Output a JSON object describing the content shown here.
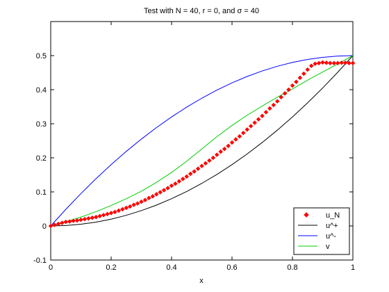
{
  "chart_data": {
    "type": "line",
    "title": "Test with N = 40, r = 0, and σ = 40",
    "xlabel": "x",
    "ylabel": "",
    "xlim": [
      0,
      1
    ],
    "ylim": [
      -0.1,
      0.6
    ],
    "xticks": [
      0,
      0.2,
      0.4,
      0.6,
      0.8,
      1
    ],
    "xtick_labels": [
      "0",
      "0.2",
      "0.4",
      "0.6",
      "0.8",
      "1"
    ],
    "yticks": [
      -0.1,
      0,
      0.1,
      0.2,
      0.3,
      0.4,
      0.5
    ],
    "ytick_labels": [
      "-0.1",
      "0",
      "0.1",
      "0.2",
      "0.3",
      "0.4",
      "0.5"
    ],
    "grid": false,
    "legend_position": "bottom-right",
    "series": [
      {
        "name": "u_N",
        "color": "#ff0000",
        "marker": "diamond",
        "line": "none",
        "x": [
          0.0,
          0.0125,
          0.025,
          0.0375,
          0.05,
          0.0625,
          0.075,
          0.0875,
          0.1,
          0.1125,
          0.125,
          0.1375,
          0.15,
          0.1625,
          0.175,
          0.1875,
          0.2,
          0.2125,
          0.225,
          0.2375,
          0.25,
          0.2625,
          0.275,
          0.2875,
          0.3,
          0.3125,
          0.325,
          0.3375,
          0.35,
          0.3625,
          0.375,
          0.3875,
          0.4,
          0.4125,
          0.425,
          0.4375,
          0.45,
          0.4625,
          0.475,
          0.4875,
          0.5,
          0.5125,
          0.525,
          0.5375,
          0.55,
          0.5625,
          0.575,
          0.5875,
          0.6,
          0.6125,
          0.625,
          0.6375,
          0.65,
          0.6625,
          0.675,
          0.6875,
          0.7,
          0.7125,
          0.725,
          0.7375,
          0.75,
          0.7625,
          0.775,
          0.7875,
          0.8,
          0.8125,
          0.825,
          0.8375,
          0.85,
          0.8625,
          0.875,
          0.8875,
          0.9,
          0.9125,
          0.925,
          0.9375,
          0.95,
          0.9625,
          0.975,
          0.9875,
          1.0
        ],
        "y": [
          0.0,
          0.003,
          0.006,
          0.009,
          0.012,
          0.013,
          0.015,
          0.016,
          0.018,
          0.02,
          0.022,
          0.024,
          0.026,
          0.029,
          0.032,
          0.035,
          0.038,
          0.041,
          0.045,
          0.049,
          0.053,
          0.057,
          0.062,
          0.066,
          0.071,
          0.076,
          0.082,
          0.087,
          0.093,
          0.099,
          0.105,
          0.111,
          0.118,
          0.124,
          0.131,
          0.138,
          0.145,
          0.153,
          0.16,
          0.168,
          0.176,
          0.184,
          0.192,
          0.2,
          0.209,
          0.218,
          0.226,
          0.235,
          0.245,
          0.254,
          0.263,
          0.273,
          0.283,
          0.293,
          0.303,
          0.313,
          0.323,
          0.334,
          0.345,
          0.355,
          0.366,
          0.378,
          0.389,
          0.4,
          0.412,
          0.423,
          0.435,
          0.447,
          0.459,
          0.47,
          0.476,
          0.478,
          0.48,
          0.479,
          0.478,
          0.478,
          0.478,
          0.479,
          0.479,
          0.478,
          0.478
        ]
      },
      {
        "name": "u^+",
        "color": "#000000",
        "marker": "none",
        "line": "solid",
        "x": [
          0.0,
          0.05,
          0.1,
          0.15,
          0.2,
          0.25,
          0.3,
          0.35,
          0.4,
          0.45,
          0.5,
          0.55,
          0.6,
          0.65,
          0.7,
          0.75,
          0.8,
          0.85,
          0.9,
          0.95,
          1.0
        ],
        "y": [
          0.0,
          0.00125,
          0.005,
          0.01125,
          0.02,
          0.03125,
          0.045,
          0.06125,
          0.08,
          0.10125,
          0.125,
          0.15125,
          0.18,
          0.21125,
          0.245,
          0.28125,
          0.32,
          0.36125,
          0.405,
          0.45125,
          0.5
        ]
      },
      {
        "name": "u^-",
        "color": "#0000ff",
        "marker": "none",
        "line": "solid",
        "x": [
          0.0,
          0.05,
          0.1,
          0.15,
          0.2,
          0.25,
          0.3,
          0.35,
          0.4,
          0.45,
          0.5,
          0.55,
          0.6,
          0.65,
          0.7,
          0.75,
          0.8,
          0.85,
          0.9,
          0.95,
          1.0
        ],
        "y": [
          0.0,
          0.04875,
          0.095,
          0.13875,
          0.18,
          0.21875,
          0.255,
          0.28875,
          0.32,
          0.34875,
          0.375,
          0.39875,
          0.42,
          0.43875,
          0.455,
          0.46875,
          0.48,
          0.48875,
          0.495,
          0.49875,
          0.5
        ]
      },
      {
        "name": "v",
        "color": "#00cc00",
        "marker": "none",
        "line": "solid",
        "x": [
          0.0,
          0.05,
          0.1,
          0.15,
          0.2,
          0.25,
          0.3,
          0.35,
          0.4,
          0.45,
          0.5,
          0.55,
          0.6,
          0.65,
          0.7,
          0.75,
          0.8,
          0.85,
          0.9,
          0.95,
          1.0
        ],
        "y": [
          0.0,
          0.012,
          0.026,
          0.042,
          0.06,
          0.08,
          0.102,
          0.128,
          0.157,
          0.19,
          0.226,
          0.262,
          0.295,
          0.325,
          0.352,
          0.378,
          0.402,
          0.428,
          0.452,
          0.476,
          0.5
        ]
      }
    ]
  }
}
